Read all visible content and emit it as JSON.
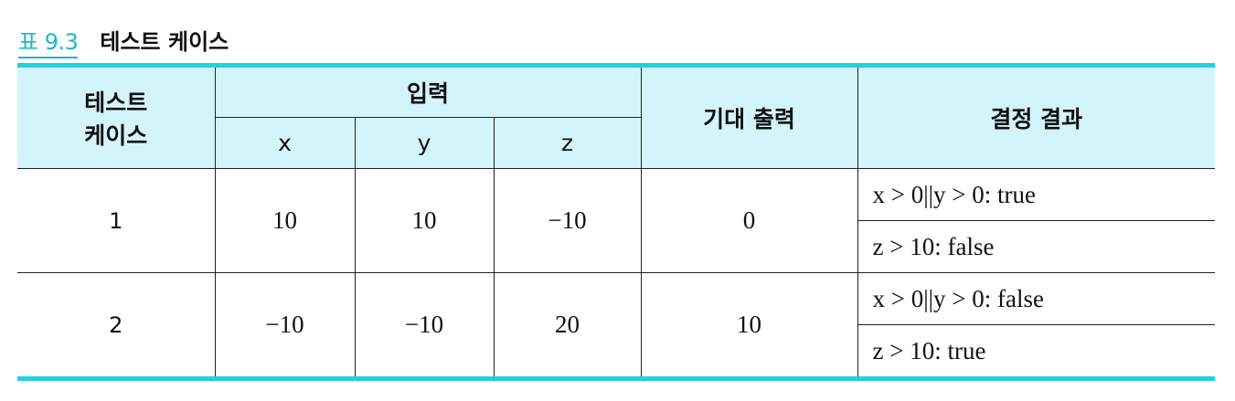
{
  "caption": {
    "number": "표 9.3",
    "title": "테스트 케이스"
  },
  "table": {
    "headers": {
      "test_case_line1": "테스트",
      "test_case_line2": "케이스",
      "input": "입력",
      "input_x": "x",
      "input_y": "y",
      "input_z": "z",
      "expected": "기대 출력",
      "decision": "결정 결과"
    },
    "rows": [
      {
        "case": "1",
        "x": "10",
        "y": "10",
        "z": "−10",
        "expected": "0",
        "results": [
          "x > 0||y > 0: true",
          "z > 10: false"
        ]
      },
      {
        "case": "2",
        "x": "−10",
        "y": "−10",
        "z": "20",
        "expected": "10",
        "results": [
          "x > 0||y > 0: false",
          "z > 10: true"
        ]
      }
    ]
  }
}
